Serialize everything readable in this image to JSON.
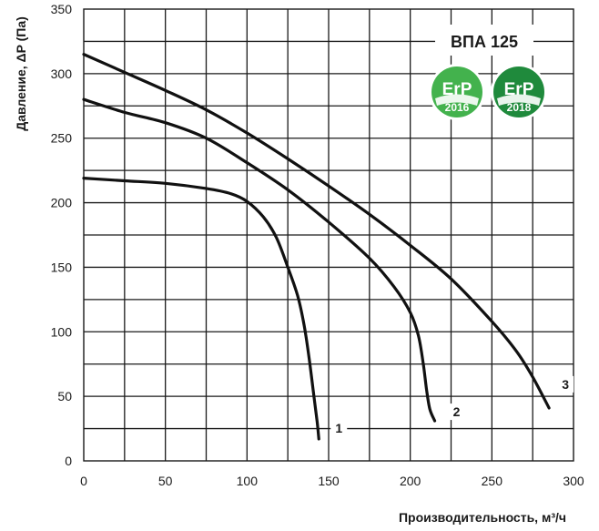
{
  "chart_data": {
    "type": "line",
    "title": "ВПА 125",
    "xlabel": "Производительность,  м³/ч",
    "ylabel": "Давление, ΔP (Па)",
    "xlim": [
      0,
      300
    ],
    "ylim": [
      0,
      350
    ],
    "x_ticks": [
      "0",
      "50",
      "100",
      "150",
      "200",
      "250",
      "300"
    ],
    "y_ticks": [
      "0",
      "50",
      "100",
      "150",
      "200",
      "250",
      "300",
      "350"
    ],
    "grid": true,
    "series": [
      {
        "name": "1",
        "color": "#111111",
        "points": [
          [
            0,
            219
          ],
          [
            25,
            217
          ],
          [
            50,
            215
          ],
          [
            75,
            211
          ],
          [
            90,
            207
          ],
          [
            100,
            201
          ],
          [
            110,
            189
          ],
          [
            118,
            173
          ],
          [
            125,
            150
          ],
          [
            131,
            128
          ],
          [
            135,
            105
          ],
          [
            138,
            80
          ],
          [
            141,
            50
          ],
          [
            143,
            30
          ],
          [
            144,
            17
          ]
        ]
      },
      {
        "name": "2",
        "color": "#111111",
        "points": [
          [
            0,
            280
          ],
          [
            25,
            270
          ],
          [
            50,
            262
          ],
          [
            75,
            250
          ],
          [
            100,
            231
          ],
          [
            125,
            210
          ],
          [
            150,
            185
          ],
          [
            175,
            157
          ],
          [
            190,
            135
          ],
          [
            200,
            115
          ],
          [
            205,
            97
          ],
          [
            208,
            75
          ],
          [
            210,
            55
          ],
          [
            212,
            40
          ],
          [
            215,
            31
          ]
        ]
      },
      {
        "name": "3",
        "color": "#111111",
        "points": [
          [
            0,
            315
          ],
          [
            25,
            301
          ],
          [
            50,
            287
          ],
          [
            75,
            272
          ],
          [
            100,
            254
          ],
          [
            125,
            234
          ],
          [
            150,
            213
          ],
          [
            175,
            191
          ],
          [
            200,
            167
          ],
          [
            225,
            141
          ],
          [
            250,
            108
          ],
          [
            265,
            85
          ],
          [
            275,
            65
          ],
          [
            285,
            41
          ]
        ]
      }
    ],
    "badges": [
      {
        "text": "ErP",
        "year": "2016",
        "color": "#43b24d"
      },
      {
        "text": "ErP",
        "year": "2018",
        "color": "#1f8a3c"
      }
    ]
  }
}
